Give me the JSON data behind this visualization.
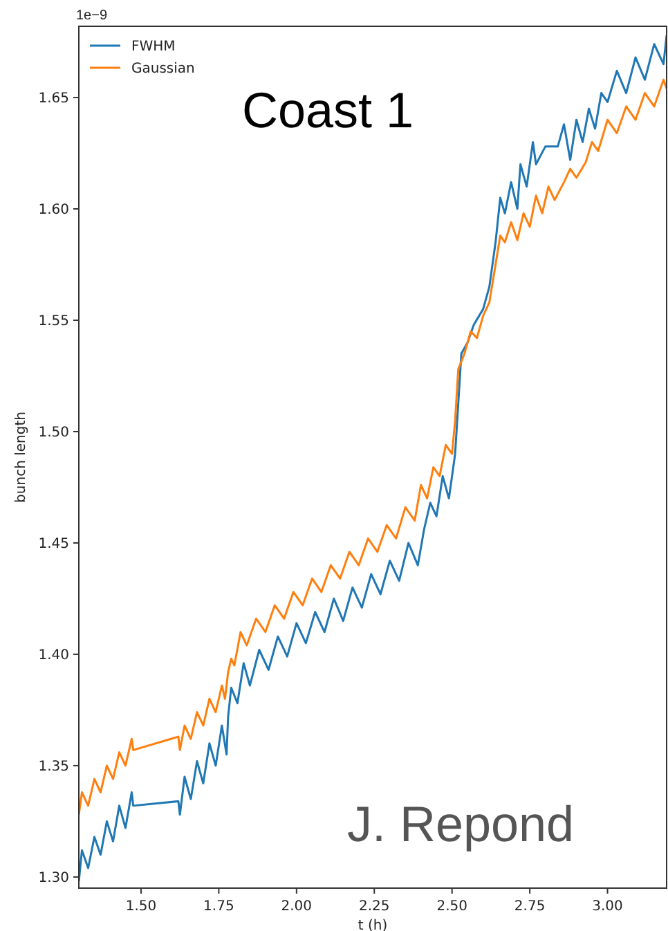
{
  "chart_data": {
    "type": "line",
    "xlabel": "t (h)",
    "ylabel": "bunch length",
    "annotations": [
      "1e−9",
      "Coast 1",
      "J. Repond"
    ],
    "xlim": [
      1.3,
      3.19
    ],
    "xticks": [
      {
        "value": 1.5,
        "label": "1.50"
      },
      {
        "value": 1.75,
        "label": "1.75"
      },
      {
        "value": 2.0,
        "label": "2.00"
      },
      {
        "value": 2.25,
        "label": "2.25"
      },
      {
        "value": 2.5,
        "label": "2.50"
      },
      {
        "value": 2.75,
        "label": "2.75"
      },
      {
        "value": 3.0,
        "label": "3.00"
      }
    ],
    "ylim": [
      1.295,
      1.682
    ],
    "yticks": [
      {
        "value": 1.3,
        "label": "1.30"
      },
      {
        "value": 1.35,
        "label": "1.35"
      },
      {
        "value": 1.4,
        "label": "1.40"
      },
      {
        "value": 1.45,
        "label": "1.45"
      },
      {
        "value": 1.5,
        "label": "1.50"
      },
      {
        "value": 1.55,
        "label": "1.55"
      },
      {
        "value": 1.6,
        "label": "1.60"
      },
      {
        "value": 1.65,
        "label": "1.65"
      }
    ],
    "grid": false,
    "legend": "top left",
    "line_style": "solid",
    "series": [
      {
        "name": "FWHM",
        "color": "#1f77b4",
        "x": [
          1.3,
          1.31,
          1.33,
          1.35,
          1.37,
          1.39,
          1.41,
          1.43,
          1.45,
          1.47,
          1.475,
          1.62,
          1.625,
          1.64,
          1.66,
          1.68,
          1.7,
          1.72,
          1.74,
          1.76,
          1.775,
          1.78,
          1.79,
          1.81,
          1.83,
          1.85,
          1.88,
          1.91,
          1.94,
          1.97,
          2.0,
          2.03,
          2.06,
          2.09,
          2.12,
          2.15,
          2.18,
          2.21,
          2.24,
          2.27,
          2.3,
          2.33,
          2.36,
          2.39,
          2.41,
          2.43,
          2.45,
          2.47,
          2.49,
          2.51,
          2.53,
          2.55,
          2.57,
          2.6,
          2.62,
          2.64,
          2.655,
          2.67,
          2.69,
          2.71,
          2.72,
          2.74,
          2.76,
          2.77,
          2.8,
          2.84,
          2.86,
          2.88,
          2.9,
          2.92,
          2.94,
          2.96,
          2.98,
          3.0,
          3.03,
          3.06,
          3.09,
          3.12,
          3.15,
          3.18,
          3.19
        ],
        "values": [
          1.298,
          1.312,
          1.304,
          1.318,
          1.31,
          1.325,
          1.316,
          1.332,
          1.322,
          1.338,
          1.332,
          1.334,
          1.328,
          1.345,
          1.335,
          1.352,
          1.342,
          1.36,
          1.35,
          1.368,
          1.355,
          1.372,
          1.385,
          1.378,
          1.396,
          1.386,
          1.402,
          1.393,
          1.408,
          1.399,
          1.414,
          1.405,
          1.419,
          1.41,
          1.425,
          1.415,
          1.43,
          1.421,
          1.436,
          1.427,
          1.442,
          1.433,
          1.45,
          1.44,
          1.456,
          1.468,
          1.462,
          1.48,
          1.47,
          1.49,
          1.535,
          1.54,
          1.548,
          1.555,
          1.565,
          1.585,
          1.605,
          1.598,
          1.612,
          1.6,
          1.62,
          1.61,
          1.63,
          1.62,
          1.628,
          1.628,
          1.638,
          1.622,
          1.64,
          1.63,
          1.645,
          1.636,
          1.652,
          1.648,
          1.662,
          1.652,
          1.668,
          1.658,
          1.674,
          1.665,
          1.678
        ]
      },
      {
        "name": "Gaussian",
        "color": "#ff7f0e",
        "x": [
          1.3,
          1.31,
          1.33,
          1.35,
          1.37,
          1.39,
          1.41,
          1.43,
          1.45,
          1.47,
          1.475,
          1.62,
          1.625,
          1.64,
          1.66,
          1.68,
          1.7,
          1.72,
          1.74,
          1.76,
          1.77,
          1.78,
          1.79,
          1.8,
          1.82,
          1.84,
          1.87,
          1.9,
          1.93,
          1.96,
          1.99,
          2.02,
          2.05,
          2.08,
          2.11,
          2.14,
          2.17,
          2.2,
          2.23,
          2.26,
          2.29,
          2.32,
          2.35,
          2.38,
          2.4,
          2.42,
          2.44,
          2.46,
          2.48,
          2.5,
          2.51,
          2.52,
          2.54,
          2.56,
          2.58,
          2.6,
          2.62,
          2.64,
          2.655,
          2.67,
          2.69,
          2.71,
          2.73,
          2.75,
          2.77,
          2.79,
          2.81,
          2.83,
          2.86,
          2.88,
          2.9,
          2.93,
          2.95,
          2.97,
          3.0,
          3.03,
          3.06,
          3.09,
          3.12,
          3.15,
          3.18,
          3.19
        ],
        "values": [
          1.328,
          1.338,
          1.332,
          1.344,
          1.338,
          1.35,
          1.344,
          1.356,
          1.35,
          1.362,
          1.357,
          1.363,
          1.357,
          1.368,
          1.362,
          1.374,
          1.368,
          1.38,
          1.374,
          1.386,
          1.38,
          1.392,
          1.398,
          1.395,
          1.41,
          1.404,
          1.416,
          1.41,
          1.422,
          1.416,
          1.428,
          1.422,
          1.434,
          1.428,
          1.44,
          1.434,
          1.446,
          1.44,
          1.452,
          1.446,
          1.458,
          1.452,
          1.466,
          1.46,
          1.476,
          1.47,
          1.484,
          1.48,
          1.494,
          1.49,
          1.505,
          1.528,
          1.535,
          1.545,
          1.542,
          1.552,
          1.558,
          1.575,
          1.588,
          1.585,
          1.594,
          1.586,
          1.598,
          1.592,
          1.606,
          1.598,
          1.61,
          1.604,
          1.612,
          1.618,
          1.614,
          1.621,
          1.63,
          1.626,
          1.64,
          1.634,
          1.646,
          1.64,
          1.652,
          1.646,
          1.658,
          1.654
        ]
      }
    ]
  }
}
